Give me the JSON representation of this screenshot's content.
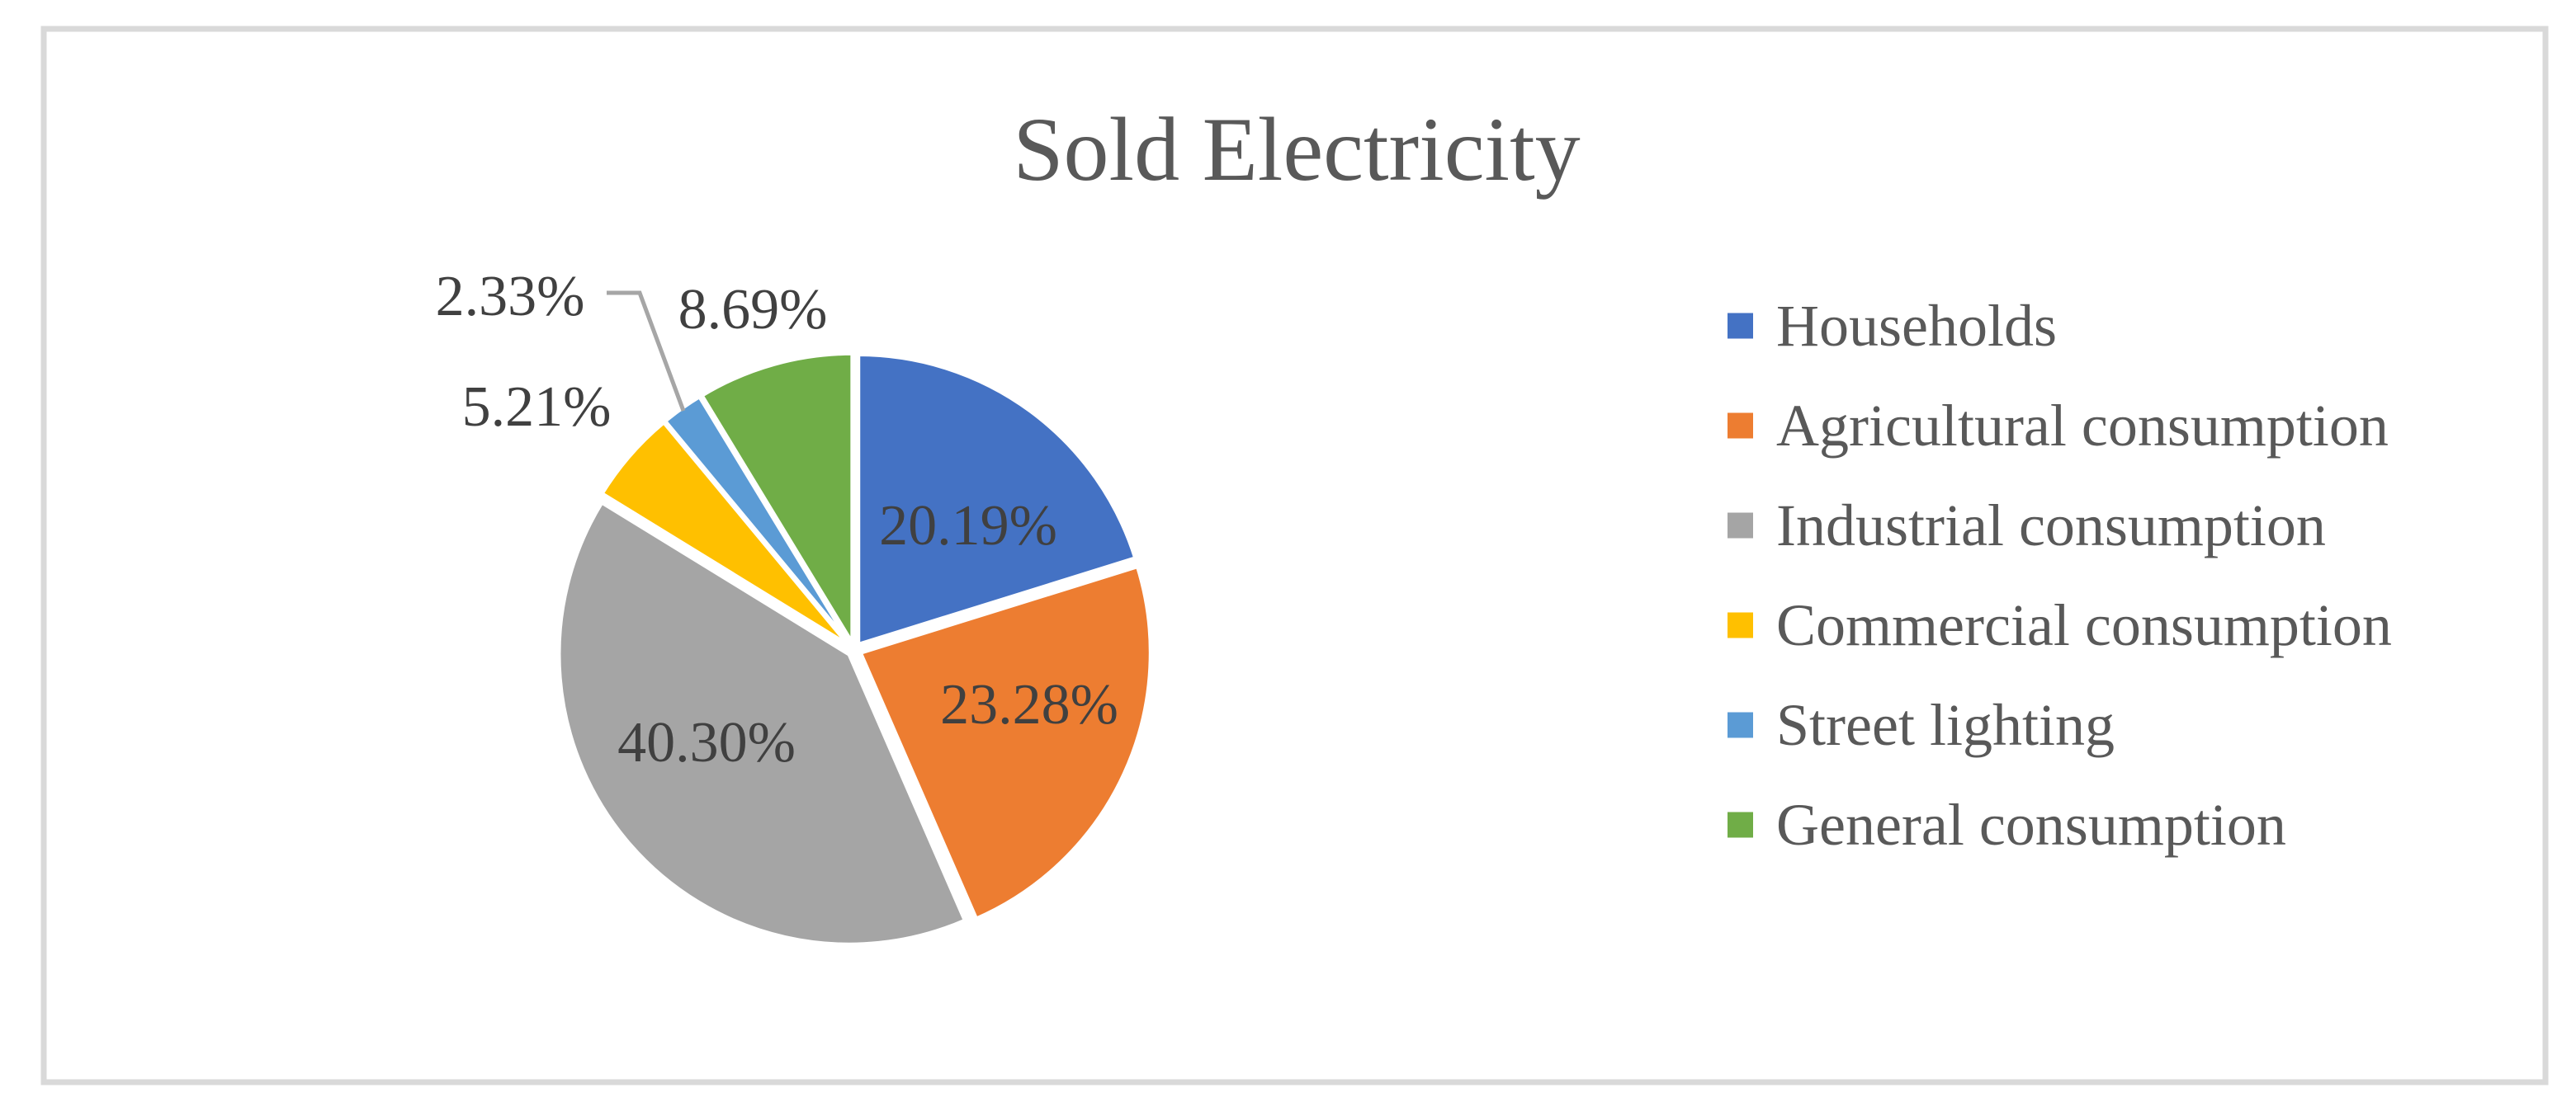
{
  "title": "Sold Electricity",
  "chart_data": {
    "type": "pie",
    "title": "Sold Electricity",
    "direction": "clockwise",
    "start_angle_deg": 0,
    "legend_position": "right",
    "categories": [
      "Households",
      "Agricultural consumption",
      "Industrial consumption",
      "Commercial consumption",
      "Street lighting",
      "General consumption"
    ],
    "values": [
      20.19,
      23.28,
      40.3,
      5.21,
      2.33,
      8.69
    ],
    "labels": [
      "20.19%",
      "23.28%",
      "40.30%",
      "5.21%",
      "2.33%",
      "8.69%"
    ],
    "colors": [
      "#4472C4",
      "#ED7D31",
      "#A5A5A5",
      "#FFC000",
      "#5B9BD5",
      "#70AD47"
    ],
    "label_placement": [
      "inside",
      "inside",
      "inside",
      "outside",
      "outside-leader",
      "outside"
    ]
  },
  "styles": {
    "background": "#FFFFFF",
    "border_color": "#D9D9D9",
    "title_color": "#595959",
    "label_color": "#404040",
    "legend_text_color": "#595959",
    "leader_line_color": "#A6A6A6",
    "slice_separator_color": "#FFFFFF"
  }
}
